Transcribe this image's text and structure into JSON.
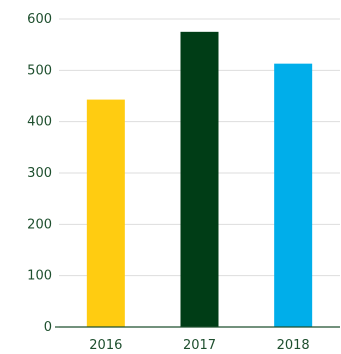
{
  "chart_data": {
    "type": "bar",
    "categories": [
      "2016",
      "2017",
      "2018"
    ],
    "values": [
      443,
      575,
      513
    ],
    "bar_colors": [
      "#ffcc11",
      "#003d16",
      "#00aeea"
    ],
    "ylim": [
      0,
      600
    ],
    "yticks": [
      0,
      100,
      200,
      300,
      400,
      500,
      600
    ],
    "grid": true,
    "title": "",
    "xlabel": "",
    "ylabel": ""
  },
  "style": {
    "tick_color": "#1e4f2e",
    "grid_color": "#dddddd",
    "axis_color": "#1e4f2e"
  }
}
